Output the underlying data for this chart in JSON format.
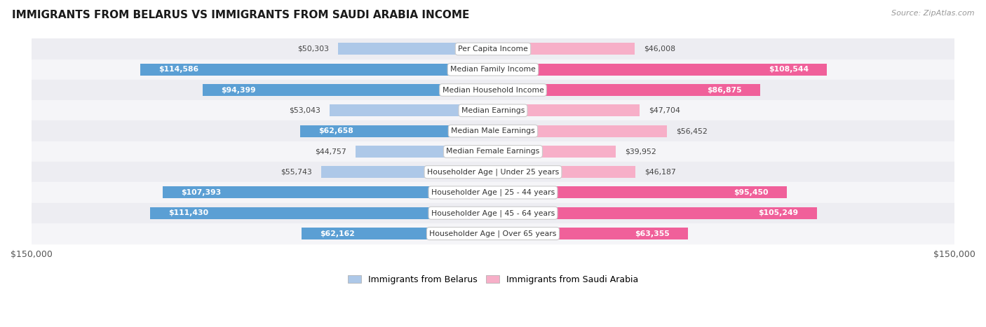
{
  "title": "IMMIGRANTS FROM BELARUS VS IMMIGRANTS FROM SAUDI ARABIA INCOME",
  "source": "Source: ZipAtlas.com",
  "categories": [
    "Per Capita Income",
    "Median Family Income",
    "Median Household Income",
    "Median Earnings",
    "Median Male Earnings",
    "Median Female Earnings",
    "Householder Age | Under 25 years",
    "Householder Age | 25 - 44 years",
    "Householder Age | 45 - 64 years",
    "Householder Age | Over 65 years"
  ],
  "belarus_values": [
    50303,
    114586,
    94399,
    53043,
    62658,
    44757,
    55743,
    107393,
    111430,
    62162
  ],
  "saudi_values": [
    46008,
    108544,
    86875,
    47704,
    56452,
    39952,
    46187,
    95450,
    105249,
    63355
  ],
  "belarus_labels": [
    "$50,303",
    "$114,586",
    "$94,399",
    "$53,043",
    "$62,658",
    "$44,757",
    "$55,743",
    "$107,393",
    "$111,430",
    "$62,162"
  ],
  "saudi_labels": [
    "$46,008",
    "$108,544",
    "$86,875",
    "$47,704",
    "$56,452",
    "$39,952",
    "$46,187",
    "$95,450",
    "$105,249",
    "$63,355"
  ],
  "max_value": 150000,
  "belarus_color_light": "#adc8e8",
  "belarus_color_dark": "#5b9fd4",
  "saudi_color_light": "#f7afc8",
  "saudi_color_dark": "#f0609a",
  "row_bg_even": "#ededf2",
  "row_bg_odd": "#f5f5f8",
  "legend_belarus": "Immigrants from Belarus",
  "legend_saudi": "Immigrants from Saudi Arabia",
  "inside_threshold": 60000
}
